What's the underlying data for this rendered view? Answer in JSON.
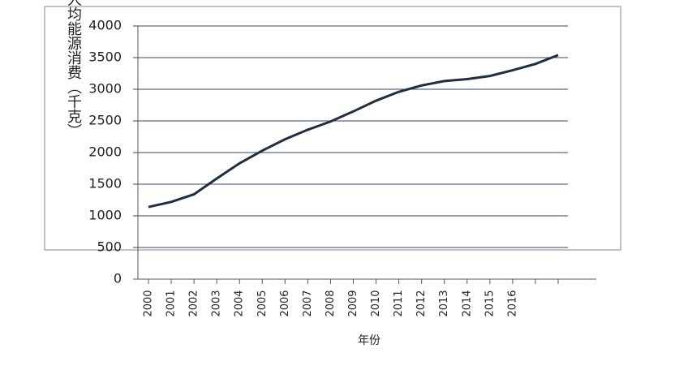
{
  "chart_data": {
    "type": "line",
    "y_label": "人均能源消费（千克）",
    "x_label": "年份",
    "categories": [
      "2000",
      "2001",
      "2002",
      "2003",
      "2004",
      "2005",
      "2006",
      "2007",
      "2008",
      "2009",
      "2010",
      "2011",
      "2012",
      "2013",
      "2014",
      "2015",
      "2016",
      null,
      null
    ],
    "series": [
      {
        "name": null,
        "color": "#1f2f3f",
        "values": [
          1140,
          1220,
          1340,
          1590,
          1830,
          2030,
          2210,
          2360,
          2490,
          2650,
          2820,
          2960,
          3060,
          3130,
          3160,
          3210,
          3300,
          3400,
          3540
        ]
      }
    ],
    "ylim": [
      0,
      4000
    ],
    "yticks": [
      0,
      500,
      1000,
      1500,
      2000,
      2500,
      3000,
      3500,
      4000
    ],
    "grid": true
  }
}
